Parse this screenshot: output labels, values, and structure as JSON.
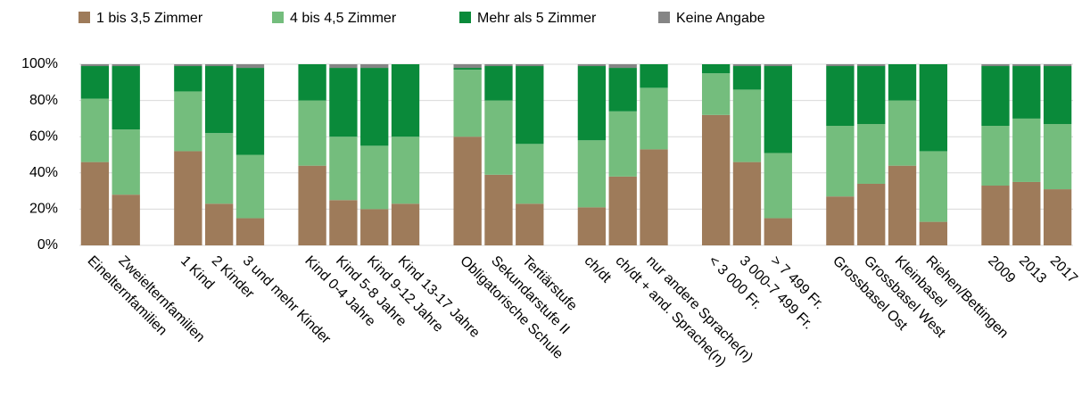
{
  "chart_data": {
    "type": "stacked_bar",
    "categories": [
      "Einelternfamilien",
      "Zweielternfamilien",
      null,
      "1 Kind",
      "2 Kinder",
      "3 und mehr Kinder",
      null,
      "Kind 0-4 Jahre",
      "Kind 5-8 Jahre",
      "Kind 9-12 Jahre",
      "Kind 13-17 Jahre",
      null,
      "Obligatorische Schule",
      "Sekundarstufe II",
      "Tertiärstufe",
      null,
      "ch/dt",
      "ch/dt + and. Sprache(n)",
      "nur andere Sprache(n)",
      null,
      "< 3 000 Fr.",
      "3 000-7 499 Fr.",
      "> 7 499 Fr.",
      null,
      "Grossbasel Ost",
      "Grossbasel West",
      "Kleinbasel",
      "Riehen/Bettingen",
      null,
      "2009",
      "2013",
      "2017"
    ],
    "series": [
      {
        "name": "1 bis 3,5 Zimmer",
        "color": "#9e7b5a",
        "values": [
          46,
          28,
          null,
          52,
          23,
          15,
          null,
          44,
          25,
          20,
          23,
          null,
          60,
          39,
          23,
          null,
          21,
          38,
          53,
          null,
          72,
          46,
          15,
          null,
          27,
          34,
          44,
          13,
          null,
          33,
          35,
          31
        ]
      },
      {
        "name": "4 bis 4,5 Zimmer",
        "color": "#74bd7d",
        "values": [
          35,
          36,
          null,
          33,
          39,
          35,
          null,
          36,
          35,
          35,
          37,
          null,
          37,
          41,
          33,
          null,
          37,
          36,
          34,
          null,
          23,
          40,
          36,
          null,
          39,
          33,
          36,
          39,
          null,
          33,
          35,
          36
        ]
      },
      {
        "name": "Mehr als 5 Zimmer",
        "color": "#0a8a3a",
        "values": [
          18,
          35,
          null,
          14,
          37,
          48,
          null,
          20,
          38,
          43,
          40,
          null,
          1,
          19,
          43,
          null,
          41,
          24,
          13,
          null,
          5,
          13,
          48,
          null,
          33,
          32,
          20,
          48,
          null,
          33,
          29,
          32
        ]
      },
      {
        "name": "Keine Angabe",
        "color": "#858585",
        "values": [
          1,
          1,
          null,
          1,
          1,
          2,
          null,
          0,
          2,
          2,
          0,
          null,
          2,
          1,
          1,
          null,
          1,
          2,
          0,
          null,
          0,
          1,
          1,
          null,
          1,
          1,
          0,
          0,
          null,
          1,
          1,
          1
        ]
      }
    ],
    "ylim": [
      0,
      100
    ],
    "yticks": [
      {
        "value": 0,
        "label": "0%"
      },
      {
        "value": 20,
        "label": "20%"
      },
      {
        "value": 40,
        "label": "40%"
      },
      {
        "value": 60,
        "label": "60%"
      },
      {
        "value": 80,
        "label": "80%"
      },
      {
        "value": 100,
        "label": "100%"
      }
    ],
    "grid": true
  }
}
